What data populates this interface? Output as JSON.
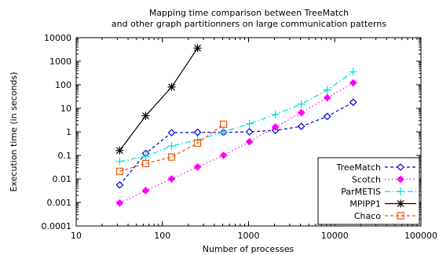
{
  "chart_data": {
    "type": "line",
    "title": [
      "Mapping time comparison between TreeMatch",
      "and other graph partitionners on large communication patterns"
    ],
    "xlabel": "Number of processes",
    "ylabel": "Execution time (in seconds)",
    "x_scale": "log",
    "y_scale": "log",
    "xlim": [
      10,
      100000
    ],
    "ylim": [
      0.0001,
      10000
    ],
    "x_ticks": [
      10,
      100,
      1000,
      10000,
      100000
    ],
    "x_tick_labels": [
      "10",
      "100",
      "1000",
      "10000",
      "100000"
    ],
    "y_ticks": [
      0.0001,
      0.001,
      0.01,
      0.1,
      1,
      10,
      100,
      1000,
      10000
    ],
    "y_tick_labels": [
      "0.0001",
      "0.001",
      "0.01",
      "0.1",
      "1",
      "10",
      "100",
      "1000",
      "10000"
    ],
    "grid": false,
    "legend_position": "bottom-right",
    "series": [
      {
        "name": "TreeMatch",
        "color": "#0000cc",
        "dash": "4,3",
        "marker": "diamond",
        "x": [
          32,
          64,
          128,
          256,
          512,
          1024,
          2048,
          4096,
          8192,
          16384
        ],
        "y": [
          0.0055,
          0.12,
          0.92,
          0.95,
          0.95,
          1.0,
          1.15,
          1.7,
          4.5,
          18
        ]
      },
      {
        "name": "Scotch",
        "color": "#ff00ff",
        "dash": "1.5,3",
        "marker": "filled-diamond",
        "x": [
          32,
          64,
          128,
          256,
          512,
          1024,
          2048,
          4096,
          8192,
          16384
        ],
        "y": [
          0.00095,
          0.0032,
          0.01,
          0.032,
          0.1,
          0.38,
          1.6,
          6.5,
          28,
          120
        ]
      },
      {
        "name": "ParMETIS",
        "color": "#00dddd",
        "dash": "7,3,1.5,3",
        "marker": "plus",
        "x": [
          32,
          64,
          128,
          256,
          512,
          1024,
          2048,
          4096,
          8192,
          16384
        ],
        "y": [
          0.055,
          0.09,
          0.25,
          0.45,
          1.0,
          2.2,
          5.5,
          15,
          60,
          350
        ]
      },
      {
        "name": "MPIPP1",
        "color": "#000000",
        "dash": "",
        "marker": "star",
        "x": [
          32,
          64,
          128,
          256
        ],
        "y": [
          0.16,
          4.8,
          80,
          3600
        ]
      },
      {
        "name": "Chaco",
        "color": "#ee5500",
        "dash": "4,3",
        "marker": "square",
        "x": [
          32,
          64,
          128,
          256,
          512
        ],
        "y": [
          0.021,
          0.045,
          0.085,
          0.33,
          2.1
        ]
      }
    ]
  }
}
